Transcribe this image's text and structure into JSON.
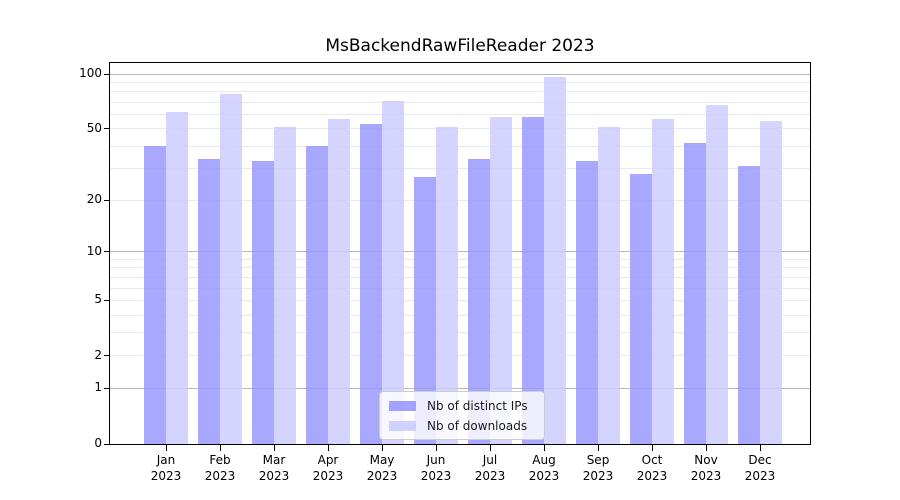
{
  "chart_data": {
    "type": "bar",
    "title": "MsBackendRawFileReader 2023",
    "categories": [
      "Jan",
      "Feb",
      "Mar",
      "Apr",
      "May",
      "Jun",
      "Jul",
      "Aug",
      "Sep",
      "Oct",
      "Nov",
      "Dec"
    ],
    "x_tick_year": "2023",
    "series": [
      {
        "name": "Nb of distinct IPs",
        "color": "#9999ff",
        "values": [
          40,
          34,
          33,
          40,
          53,
          27,
          34,
          58,
          33,
          28,
          42,
          31
        ]
      },
      {
        "name": "Nb of downloads",
        "color": "#ccccff",
        "values": [
          62,
          78,
          51,
          57,
          71,
          51,
          58,
          96,
          51,
          57,
          68,
          55
        ]
      }
    ],
    "yscale": "log10(1+x)",
    "ylim": [
      0,
      115
    ],
    "y_ticks": [
      100,
      50,
      20,
      10,
      5,
      2,
      1,
      0
    ],
    "major_gridlines": [
      1,
      10,
      100
    ],
    "minor_gridlines": [
      2,
      3,
      4,
      5,
      6,
      7,
      8,
      9,
      20,
      30,
      40,
      50,
      60,
      70,
      80,
      90
    ],
    "grid": true,
    "legend_position": "lower center",
    "colors": {
      "major_grid": "#b8b8b8",
      "minor_grid": "#e9e9e9",
      "spine": "#000000",
      "text": "#000000",
      "legend_border": "#cccccc"
    }
  }
}
